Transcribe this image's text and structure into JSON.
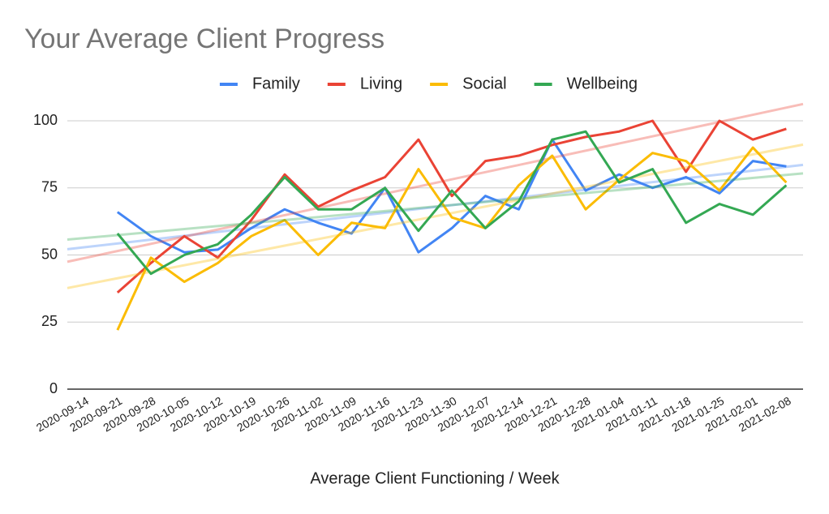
{
  "chart_data": {
    "type": "line",
    "title": "Your Average Client Progress",
    "x_label": "Average Client Functioning / Week",
    "categories": [
      "2020-09-14",
      "2020-09-21",
      "2020-09-28",
      "2020-10-05",
      "2020-10-12",
      "2020-10-19",
      "2020-10-26",
      "2020-11-02",
      "2020-11-09",
      "2020-11-16",
      "2020-11-23",
      "2020-11-30",
      "2020-12-07",
      "2020-12-14",
      "2020-12-21",
      "2020-12-28",
      "2021-01-04",
      "2021-01-11",
      "2021-01-18",
      "2021-01-25",
      "2021-02-01",
      "2021-02-08"
    ],
    "series": [
      {
        "name": "Family",
        "color": "#4285f4",
        "values": [
          null,
          66,
          57,
          51,
          52,
          60,
          67,
          62,
          58,
          75,
          51,
          60,
          72,
          67,
          93,
          74,
          80,
          75,
          79,
          73,
          85,
          83
        ]
      },
      {
        "name": "Living",
        "color": "#ea4335",
        "values": [
          null,
          36,
          47,
          57,
          49,
          63,
          80,
          68,
          74,
          79,
          93,
          72,
          85,
          87,
          91,
          94,
          96,
          100,
          81,
          100,
          93,
          97
        ]
      },
      {
        "name": "Social",
        "color": "#fbbc04",
        "values": [
          null,
          22,
          49,
          40,
          47,
          57,
          63,
          50,
          62,
          60,
          82,
          64,
          60,
          76,
          87,
          67,
          78,
          88,
          85,
          74,
          90,
          77
        ]
      },
      {
        "name": "Wellbeing",
        "color": "#34a853",
        "values": [
          null,
          58,
          43,
          50,
          54,
          65,
          79,
          67,
          67,
          75,
          59,
          74,
          60,
          70,
          93,
          96,
          77,
          82,
          62,
          69,
          65,
          76
        ]
      }
    ],
    "ylim": [
      0,
      100
    ],
    "yticks": [
      0,
      25,
      50,
      75,
      100
    ],
    "grid": true,
    "trendlines": true,
    "legend": "top"
  }
}
